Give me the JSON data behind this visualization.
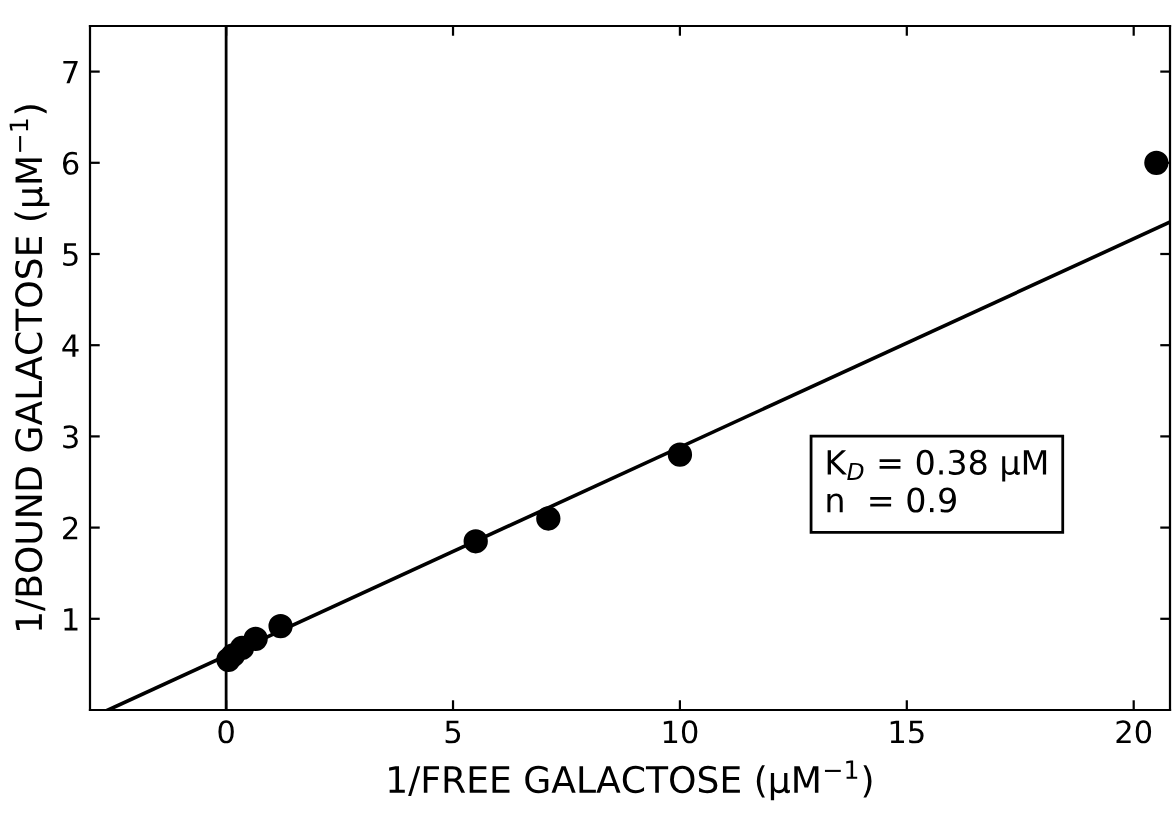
{
  "chart_data": {
    "type": "scatter",
    "xlabel": "1/FREE GALACTOSE (μM$^{−1}$)",
    "ylabel": "1/BOUND GALACTOSE (μM$^{−1}$)",
    "series": [
      {
        "color": "#000000",
        "marker": "circle",
        "x": [
          0.05,
          0.15,
          0.35,
          0.65,
          1.2,
          5.5,
          7.1,
          10,
          20.5
        ],
        "values": [
          0.55,
          0.6,
          0.68,
          0.78,
          0.92,
          1.85,
          2.1,
          2.8,
          6.0
        ]
      },
      {
        "type": "line",
        "color": "#000000",
        "x": [
          -2.6,
          20.8
        ],
        "values": [
          0,
          5.35
        ]
      }
    ],
    "annotations": [
      "K$_{D}$ = 0.38 μM\nn  = 0.9"
    ],
    "xlim": [
      -3,
      20.8
    ],
    "ylim": [
      0,
      7.5
    ],
    "xticks": [
      0,
      5,
      10,
      15,
      20
    ],
    "yticks": [
      1,
      2,
      3,
      4,
      5,
      6,
      7
    ],
    "ref_lines": [
      {
        "axis": "x",
        "value": 0,
        "color": "#000000"
      }
    ],
    "grid": false,
    "legend": false
  }
}
